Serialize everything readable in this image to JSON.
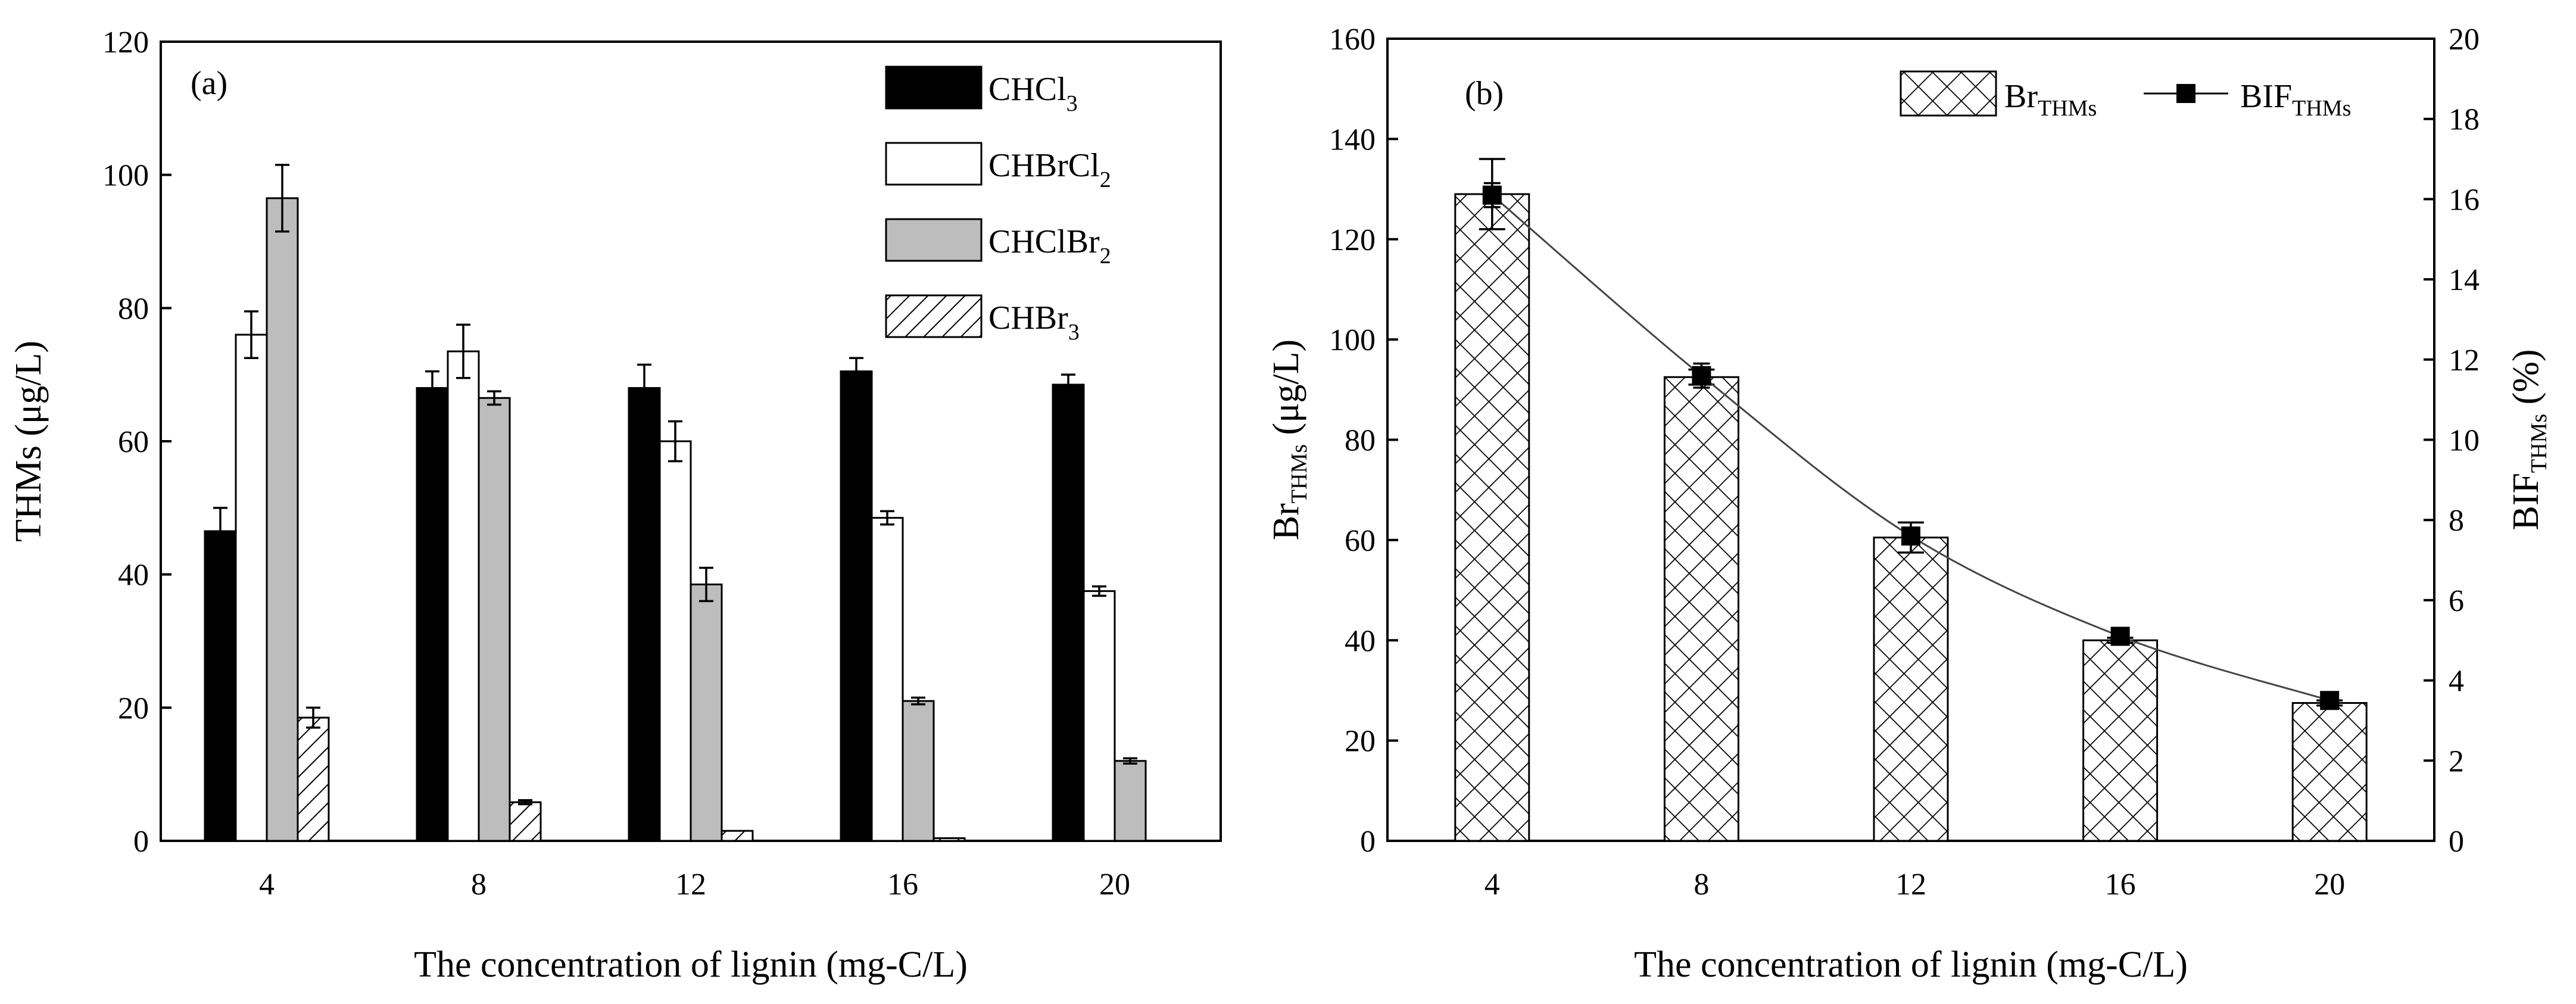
{
  "chart_data": [
    {
      "type": "bar",
      "panel_label": "(a)",
      "categories": [
        "4",
        "8",
        "12",
        "16",
        "20"
      ],
      "xlabel": "The concentration of lignin (mg-C/L)",
      "ylabel": "THMs (μg/L)",
      "ylim": [
        0,
        120
      ],
      "yticks": [
        "0",
        "20",
        "40",
        "60",
        "80",
        "100",
        "120"
      ],
      "legend_position": "top-right",
      "series": [
        {
          "name": "CHCl",
          "name_sub": "3",
          "name_tail": "",
          "fill": "black",
          "values": [
            46.5,
            68.0,
            68.0,
            70.5,
            68.5
          ],
          "errors": [
            3.5,
            2.5,
            3.5,
            2.0,
            1.5
          ]
        },
        {
          "name": "CHBrCl",
          "name_sub": "2",
          "name_tail": "",
          "fill": "white",
          "values": [
            76.0,
            73.5,
            60.0,
            48.5,
            37.5
          ],
          "errors": [
            3.5,
            4.0,
            3.0,
            1.0,
            0.7
          ]
        },
        {
          "name": "CHClBr",
          "name_sub": "2",
          "name_tail": "",
          "fill": "gray",
          "values": [
            96.5,
            66.5,
            38.5,
            21.0,
            12.0
          ],
          "errors": [
            5.0,
            1.0,
            2.5,
            0.5,
            0.4
          ]
        },
        {
          "name": "CHBr",
          "name_sub": "3",
          "name_tail": "",
          "fill": "hatch",
          "values": [
            18.5,
            5.8,
            1.5,
            0.4,
            0.0
          ],
          "errors": [
            1.5,
            0.3,
            0.0,
            0.0,
            0.0
          ]
        }
      ]
    },
    {
      "type": "bar",
      "panel_label": "(b)",
      "categories": [
        "4",
        "8",
        "12",
        "16",
        "20"
      ],
      "xlabel": "The concentration of lignin (mg-C/L)",
      "ylabel": {
        "main": "Br",
        "sub": "THMs",
        "tail": "  (μg/L)"
      },
      "y2label": {
        "main": "BIF",
        "sub": "THMs",
        "tail": "  (%)"
      },
      "ylim": [
        0,
        160
      ],
      "y2lim": [
        0,
        20
      ],
      "yticks": [
        "0",
        "20",
        "40",
        "60",
        "80",
        "100",
        "120",
        "140",
        "160"
      ],
      "y2ticks": [
        "0",
        "2",
        "4",
        "6",
        "8",
        "10",
        "12",
        "14",
        "16",
        "18",
        "20"
      ],
      "legend_position": "top-right",
      "series": [
        {
          "name": "Br",
          "name_sub": "THMs",
          "kind": "bar",
          "fill": "crosshatch",
          "values": [
            129.0,
            92.5,
            60.5,
            40.0,
            27.5
          ],
          "errors": [
            7.0,
            1.5,
            3.0,
            0.5,
            0.5
          ]
        },
        {
          "name": "BIF",
          "name_sub": "THMs",
          "kind": "line",
          "axis": "right",
          "values": [
            16.1,
            11.6,
            7.6,
            5.1,
            3.5
          ],
          "errors": [
            0.3,
            0.3,
            0.2,
            0.1,
            0.1
          ]
        }
      ]
    }
  ]
}
